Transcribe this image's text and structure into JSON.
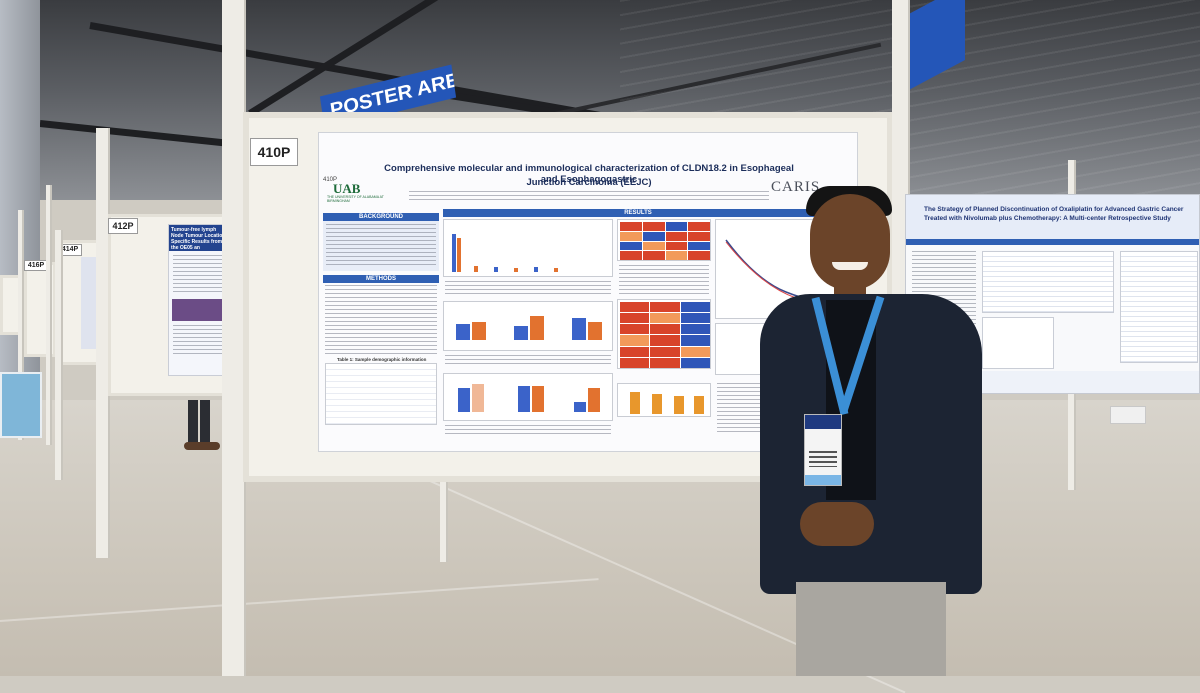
{
  "signs": {
    "poster_area": "POSTER AREA A"
  },
  "board_numbers": {
    "main": "410P",
    "left1": "412P",
    "left2": "414P",
    "left3": "416P"
  },
  "poster": {
    "number": "410P",
    "title_line1": "Comprehensive molecular and immunological characterization of CLDN18.2 in Esophageal and Esophagogastric",
    "title_line2": "Junction Carcinoma (EEJC)",
    "logo_left": "UAB",
    "logo_left_sub": "THE UNIVERSITY OF ALABAMA AT BIRMINGHAM",
    "logo_right": "CARIS",
    "sections": {
      "background": "BACKGROUND",
      "methods": "METHODS",
      "results": "RESULTS"
    },
    "table_title": "Table 1: Sample demographic information"
  },
  "right_poster": {
    "title_line1": "The Strategy of Planned Discontinuation of Oxaliplatin for Advanced Gastric Cancer",
    "title_line2": "Treated with Nivolumab plus Chemotherapy: A Multi-center Retrospective Study"
  },
  "left_poster": {
    "title": "Tumour-free lymph Node Tumour Location Specific Results from the OE05 an"
  }
}
